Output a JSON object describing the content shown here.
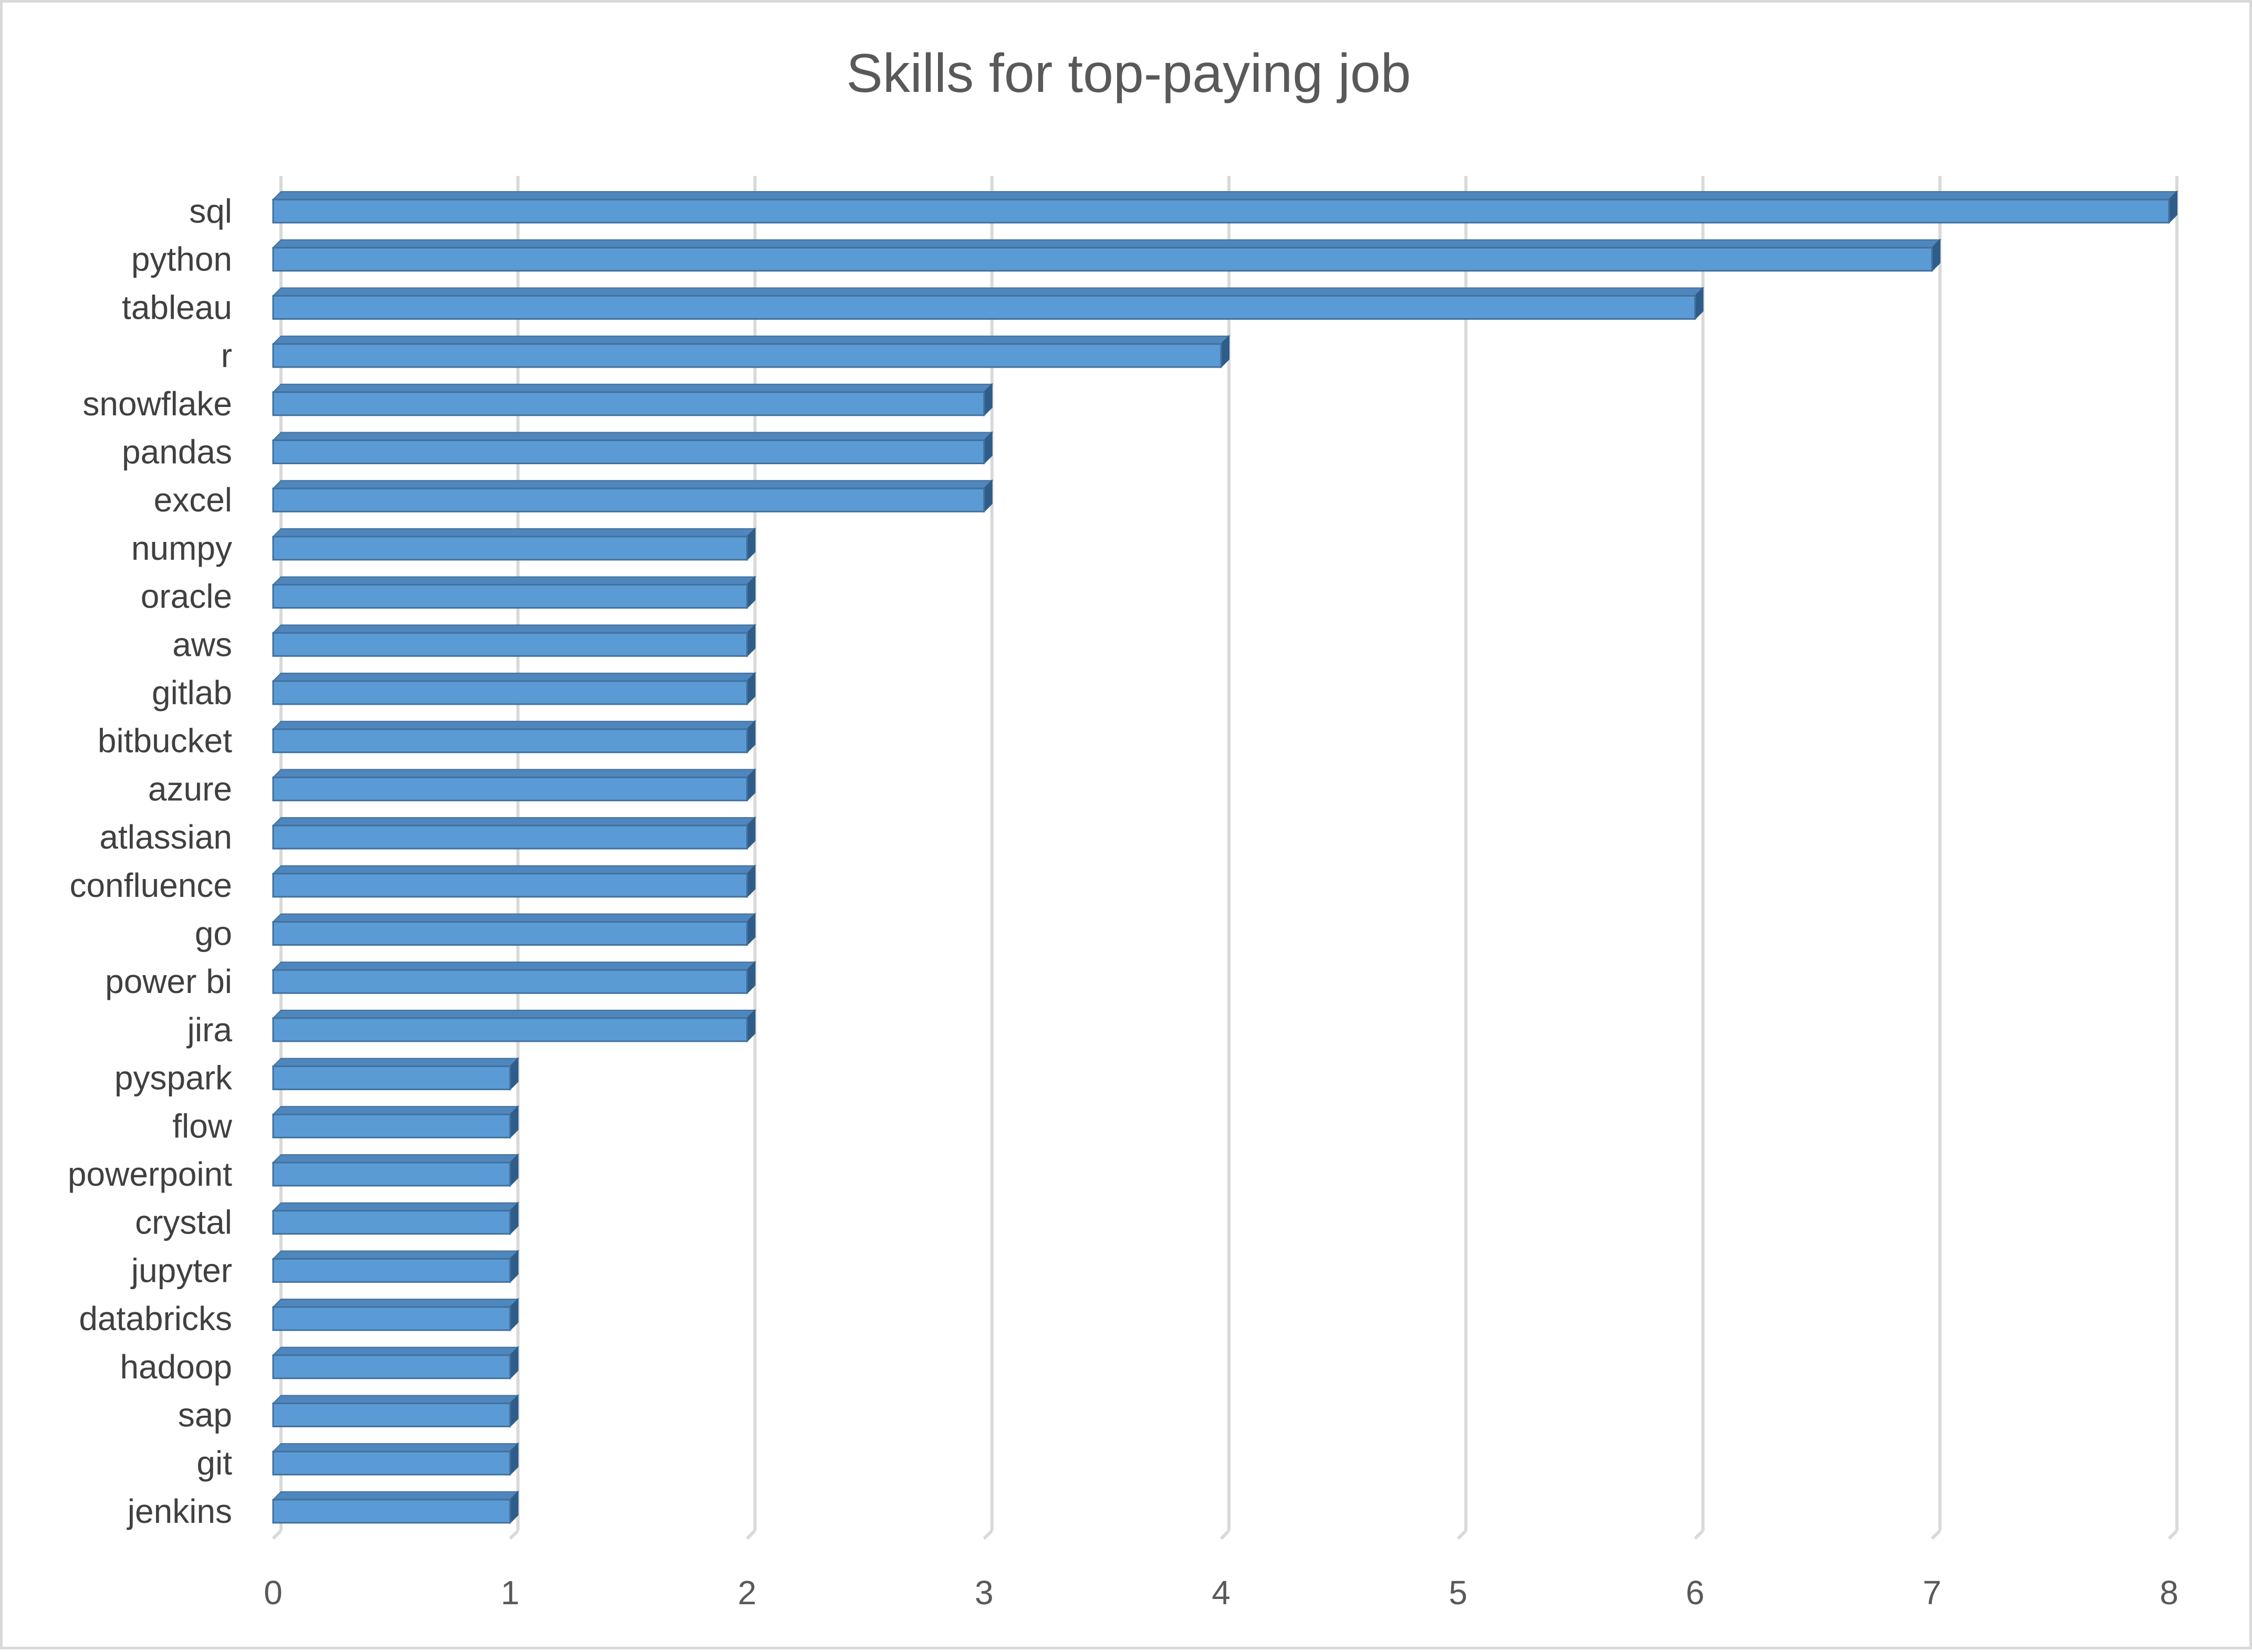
{
  "chart_data": {
    "type": "bar",
    "orientation": "horizontal",
    "style": "3d-clustered-bar",
    "title": "Skills for top-paying job",
    "xlabel": "",
    "ylabel": "",
    "xlim": [
      0,
      8
    ],
    "xticks": [
      "0",
      "1",
      "2",
      "3",
      "4",
      "5",
      "6",
      "7",
      "8"
    ],
    "grid": true,
    "legend": "none",
    "bar_color": "#5b9bd5",
    "bar_edge_color": "#41719c",
    "categories": [
      "sql",
      "python",
      "tableau",
      "r",
      "snowflake",
      "pandas",
      "excel",
      "numpy",
      "oracle",
      "aws",
      "gitlab",
      "bitbucket",
      "azure",
      "atlassian",
      "confluence",
      "go",
      "power bi",
      "jira",
      "pyspark",
      "flow",
      "powerpoint",
      "crystal",
      "jupyter",
      "databricks",
      "hadoop",
      "sap",
      "git",
      "jenkins"
    ],
    "values": [
      8,
      7,
      6,
      4,
      3,
      3,
      3,
      2,
      2,
      2,
      2,
      2,
      2,
      2,
      2,
      2,
      2,
      2,
      1,
      1,
      1,
      1,
      1,
      1,
      1,
      1,
      1,
      1
    ]
  }
}
